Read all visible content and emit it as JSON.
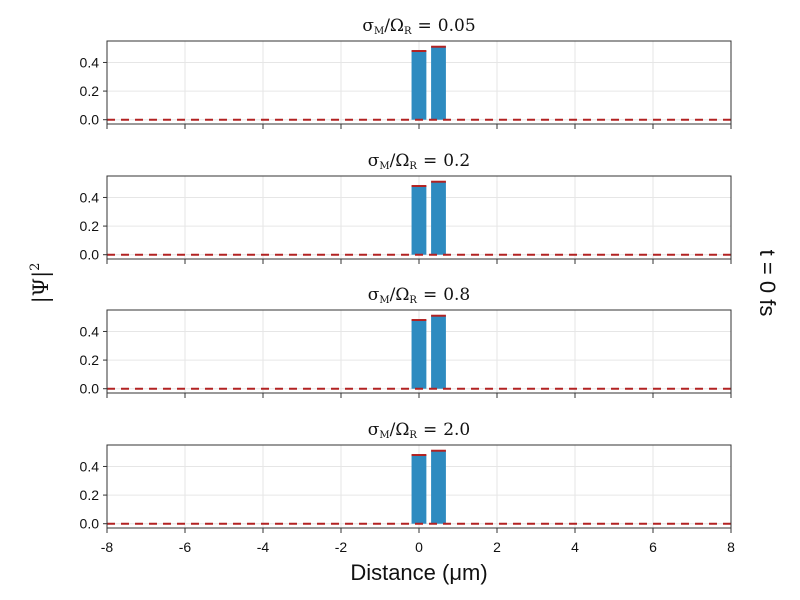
{
  "figure": {
    "ylabel": "|Ψ|",
    "ylabel_sup": "2",
    "xlabel": "Distance (μm)",
    "side_label": "t = 0 fs"
  },
  "colors": {
    "bar": "#2e8bc0",
    "bar_top": "#b22222",
    "baseline": "#b22222",
    "grid": "#e6e6e6",
    "frame": "#333333",
    "text": "#111111"
  },
  "chart_data": [
    {
      "type": "bar",
      "title_symbol": "σ",
      "title_sub1": "M",
      "title_mid": "/Ω",
      "title_sub2": "R",
      "title_eq": "=",
      "title_value": "0.05",
      "x": [
        -0.001,
        0.5
      ],
      "values": [
        0.48,
        0.51
      ],
      "bar_width": 0.38,
      "baseline": 0.0,
      "xlim": [
        -8,
        8
      ],
      "ylim": [
        -0.03,
        0.55
      ],
      "xticks": [
        "-8",
        "-6",
        "-4",
        "-2",
        "0",
        "2",
        "4",
        "6",
        "8"
      ],
      "xtick_values": [
        -8,
        -6,
        -4,
        -2,
        0,
        2,
        4,
        6,
        8
      ],
      "yticks": [
        "0.0",
        "0.2",
        "0.4"
      ],
      "ytick_values": [
        0.0,
        0.2,
        0.4
      ],
      "grid": true
    },
    {
      "type": "bar",
      "title_symbol": "σ",
      "title_sub1": "M",
      "title_mid": "/Ω",
      "title_sub2": "R",
      "title_eq": "=",
      "title_value": "0.2",
      "x": [
        -0.001,
        0.5
      ],
      "values": [
        0.48,
        0.51
      ],
      "bar_width": 0.38,
      "baseline": 0.0,
      "xlim": [
        -8,
        8
      ],
      "ylim": [
        -0.03,
        0.55
      ],
      "xticks": [
        "-8",
        "-6",
        "-4",
        "-2",
        "0",
        "2",
        "4",
        "6",
        "8"
      ],
      "xtick_values": [
        -8,
        -6,
        -4,
        -2,
        0,
        2,
        4,
        6,
        8
      ],
      "yticks": [
        "0.0",
        "0.2",
        "0.4"
      ],
      "ytick_values": [
        0.0,
        0.2,
        0.4
      ],
      "grid": true
    },
    {
      "type": "bar",
      "title_symbol": "σ",
      "title_sub1": "M",
      "title_mid": "/Ω",
      "title_sub2": "R",
      "title_eq": "=",
      "title_value": "0.8",
      "x": [
        -0.001,
        0.5
      ],
      "values": [
        0.48,
        0.51
      ],
      "bar_width": 0.38,
      "baseline": 0.0,
      "xlim": [
        -8,
        8
      ],
      "ylim": [
        -0.03,
        0.55
      ],
      "xticks": [
        "-8",
        "-6",
        "-4",
        "-2",
        "0",
        "2",
        "4",
        "6",
        "8"
      ],
      "xtick_values": [
        -8,
        -6,
        -4,
        -2,
        0,
        2,
        4,
        6,
        8
      ],
      "yticks": [
        "0.0",
        "0.2",
        "0.4"
      ],
      "ytick_values": [
        0.0,
        0.2,
        0.4
      ],
      "grid": true
    },
    {
      "type": "bar",
      "title_symbol": "σ",
      "title_sub1": "M",
      "title_mid": "/Ω",
      "title_sub2": "R",
      "title_eq": "=",
      "title_value": "2.0",
      "x": [
        -0.001,
        0.5
      ],
      "values": [
        0.48,
        0.51
      ],
      "bar_width": 0.38,
      "baseline": 0.0,
      "xlim": [
        -8,
        8
      ],
      "ylim": [
        -0.03,
        0.55
      ],
      "xticks": [
        "-8",
        "-6",
        "-4",
        "-2",
        "0",
        "2",
        "4",
        "6",
        "8"
      ],
      "xtick_values": [
        -8,
        -6,
        -4,
        -2,
        0,
        2,
        4,
        6,
        8
      ],
      "yticks": [
        "0.0",
        "0.2",
        "0.4"
      ],
      "ytick_values": [
        0.0,
        0.2,
        0.4
      ],
      "grid": true
    }
  ]
}
